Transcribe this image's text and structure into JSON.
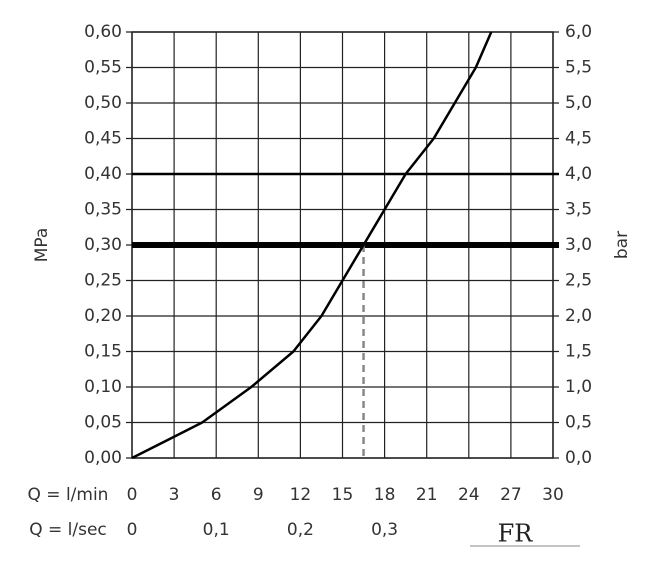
{
  "chart_data": {
    "type": "line",
    "xlabel": "Q = l/min",
    "x2label": "Q = l/sec",
    "ylabel": "MPa",
    "y2label": "bar",
    "x": [
      0,
      3,
      5,
      8.5,
      11.5,
      13.5,
      15,
      16.5,
      18,
      19.5,
      21.5,
      23,
      24.5,
      25.6
    ],
    "series": [
      {
        "color": "#000000",
        "values": [
          0,
          0.03,
          0.05,
          0.1,
          0.15,
          0.2,
          0.25,
          0.3,
          0.35,
          0.4,
          0.45,
          0.5,
          0.55,
          0.6
        ]
      }
    ],
    "xlim": [
      0,
      30
    ],
    "xticks": [
      0,
      3,
      6,
      9,
      12,
      15,
      18,
      21,
      24,
      27,
      30
    ],
    "x2lim": [
      0,
      0.5
    ],
    "x2ticks": [
      0,
      {
        "value": 0.1,
        "label": "0,1"
      },
      {
        "value": 0.2,
        "label": "0,2"
      },
      {
        "value": 0.3,
        "label": "0,3"
      }
    ],
    "ylim": [
      0,
      0.6
    ],
    "yticks": [
      {
        "value": 0,
        "label": "0,00"
      },
      {
        "value": 0.05,
        "label": "0,05"
      },
      {
        "value": 0.1,
        "label": "0,10"
      },
      {
        "value": 0.15,
        "label": "0,15"
      },
      {
        "value": 0.2,
        "label": "0,20"
      },
      {
        "value": 0.25,
        "label": "0,25"
      },
      {
        "value": 0.3,
        "label": "0,30"
      },
      {
        "value": 0.35,
        "label": "0,35"
      },
      {
        "value": 0.4,
        "label": "0,40"
      },
      {
        "value": 0.45,
        "label": "0,45"
      },
      {
        "value": 0.5,
        "label": "0,50"
      },
      {
        "value": 0.55,
        "label": "0,55"
      },
      {
        "value": 0.6,
        "label": "0,60"
      }
    ],
    "y2lim": [
      0,
      6
    ],
    "y2ticks": [
      {
        "value": 0,
        "label": "0,0"
      },
      {
        "value": 0.5,
        "label": "0,5"
      },
      {
        "value": 1,
        "label": "1,0"
      },
      {
        "value": 1.5,
        "label": "1,5"
      },
      {
        "value": 2,
        "label": "2,0"
      },
      {
        "value": 2.5,
        "label": "2,5"
      },
      {
        "value": 3,
        "label": "3,0"
      },
      {
        "value": 3.5,
        "label": "3,5"
      },
      {
        "value": 4,
        "label": "4,0"
      },
      {
        "value": 4.5,
        "label": "4,5"
      },
      {
        "value": 5,
        "label": "5,0"
      },
      {
        "value": 5.5,
        "label": "5,5"
      },
      {
        "value": 6,
        "label": "6,0"
      }
    ],
    "grid": true,
    "hlines": [
      0.4,
      0.3
    ],
    "marker": {
      "x": 16.5,
      "y": 0.3
    },
    "logo": "FR"
  }
}
